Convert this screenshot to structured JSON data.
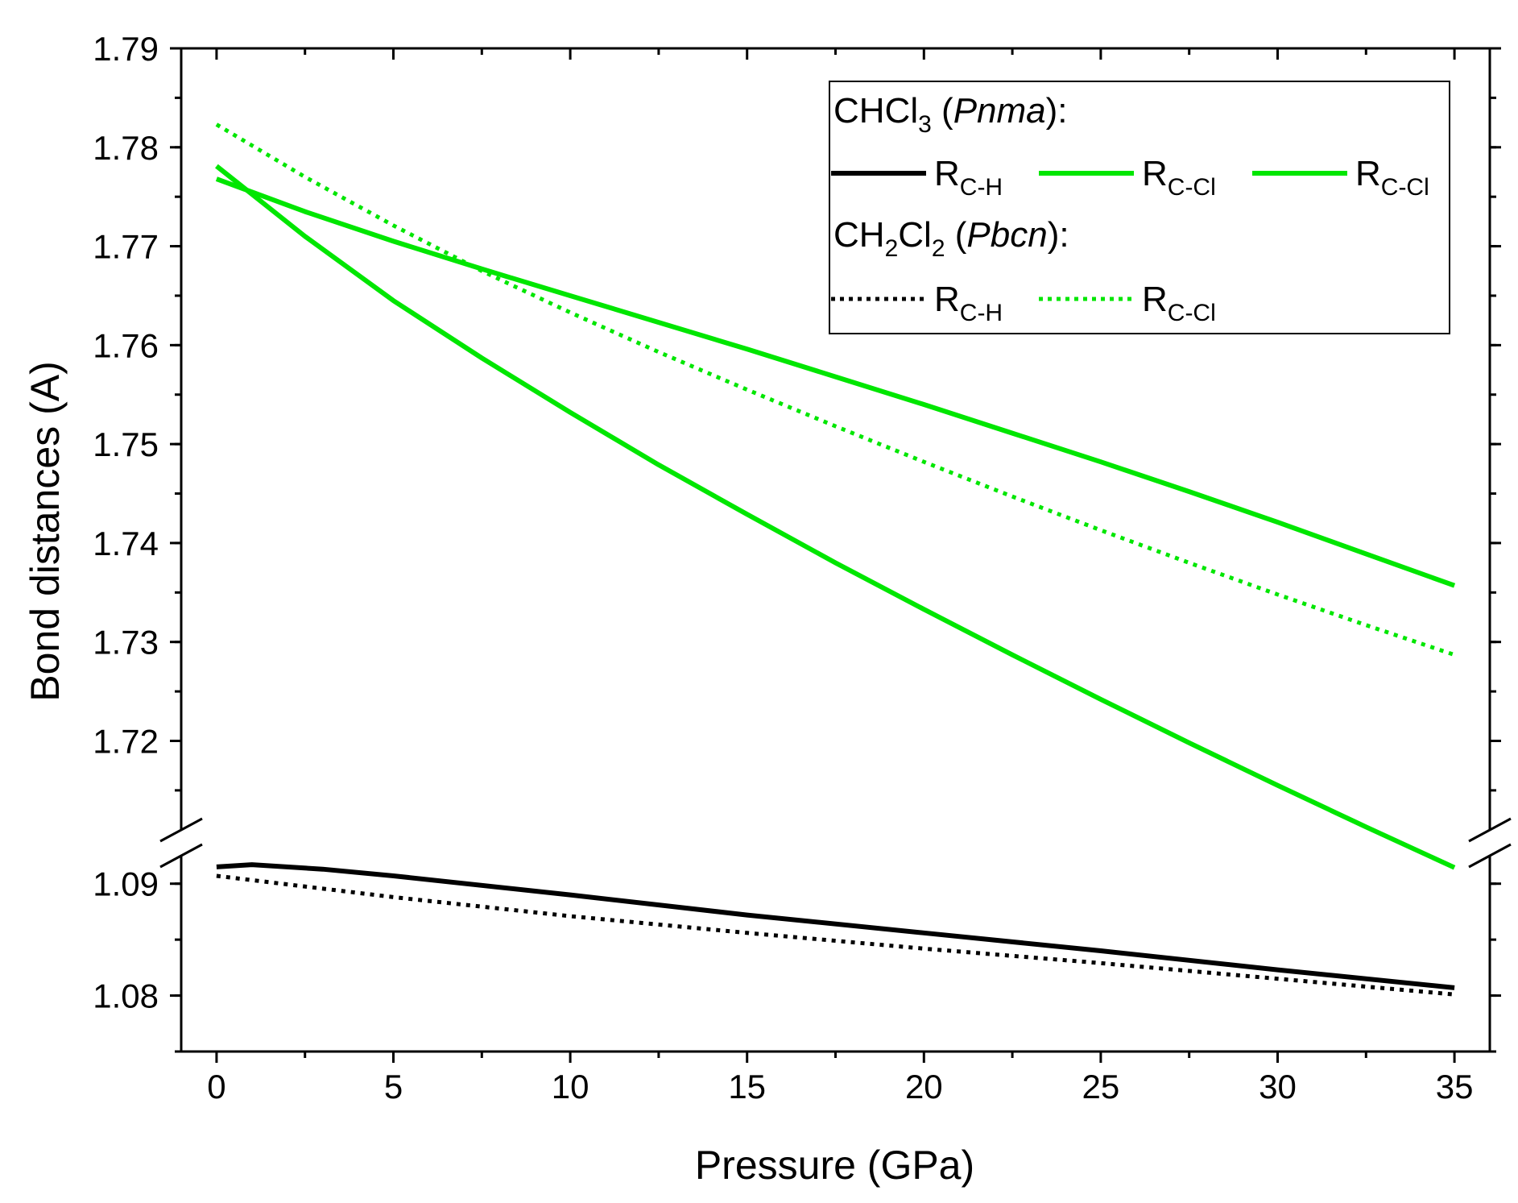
{
  "chart_data": {
    "type": "line",
    "xlabel": "Pressure (GPa)",
    "ylabel": "Bond distances (A)",
    "x_range": [
      -1,
      36
    ],
    "x_ticks": [
      0,
      5,
      10,
      15,
      20,
      25,
      30,
      35
    ],
    "y_axis_break": true,
    "y_upper_range": [
      1.711,
      1.79
    ],
    "y_upper_ticks": [
      "1.72",
      "1.73",
      "1.74",
      "1.75",
      "1.76",
      "1.77",
      "1.78",
      "1.79"
    ],
    "y_lower_range": [
      1.075,
      1.0925
    ],
    "y_lower_ticks": [
      "1.08",
      "1.09"
    ],
    "grid": false,
    "legend_position": "top-right",
    "legend": {
      "group1": {
        "formula_a": "CHCl",
        "formula_sub": "3",
        "open": " (",
        "space_group": "Pnma",
        "close": "):"
      },
      "group2": {
        "f1": "CH",
        "s1": "2",
        "f2": "Cl",
        "s2": "2",
        "open": " (",
        "space_group": "Pbcn",
        "close": "):"
      },
      "entries": [
        {
          "main": "R",
          "sub": "C-H",
          "series": 0
        },
        {
          "main": "R",
          "sub": "C-Cl",
          "series": 1
        },
        {
          "main": "R",
          "sub": "C-Cl",
          "series": 2
        },
        {
          "main": "R",
          "sub": "C-H",
          "series": 3
        },
        {
          "main": "R",
          "sub": "C-Cl",
          "series": 4
        }
      ]
    },
    "series": [
      {
        "name": "CHCl3 (Pnma) R C-H",
        "color": "#000000",
        "style": "solid",
        "axis": "lower",
        "x": [
          0,
          1,
          3,
          5,
          10,
          15,
          20,
          25,
          30,
          35
        ],
        "values": [
          1.0915,
          1.0917,
          1.0913,
          1.0907,
          1.089,
          1.0872,
          1.0856,
          1.084,
          1.0823,
          1.0807
        ]
      },
      {
        "name": "CHCl3 (Pnma) R C-Cl",
        "color": "#00e600",
        "style": "solid",
        "axis": "upper",
        "x": [
          0,
          2.5,
          5,
          7.5,
          10,
          12.5,
          15,
          17.5,
          20,
          22.5,
          25,
          27.5,
          30,
          32.5,
          35
        ],
        "values": [
          1.7768,
          1.7735,
          1.7705,
          1.7677,
          1.765,
          1.7623,
          1.7596,
          1.7568,
          1.754,
          1.7511,
          1.7482,
          1.7452,
          1.7421,
          1.7389,
          1.7357
        ]
      },
      {
        "name": "CHCl3 (Pnma) R C-Cl",
        "color": "#00e600",
        "style": "solid",
        "axis": "upper",
        "x": [
          0,
          2.5,
          5,
          7.5,
          10,
          12.5,
          15,
          17.5,
          20,
          22.5,
          25,
          27.5,
          30,
          32.5,
          35
        ],
        "values": [
          1.7781,
          1.771,
          1.7645,
          1.7587,
          1.7532,
          1.7479,
          1.7429,
          1.738,
          1.7333,
          1.7287,
          1.7242,
          1.7198,
          1.7155,
          1.7113,
          1.7072
        ]
      },
      {
        "name": "CH2Cl2 (Pbcn) R C-H",
        "color": "#000000",
        "style": "dotted",
        "axis": "lower",
        "x": [
          0,
          5,
          10,
          15,
          20,
          25,
          30,
          35
        ],
        "values": [
          1.0907,
          1.0888,
          1.0871,
          1.0856,
          1.0842,
          1.0829,
          1.0815,
          1.0801
        ]
      },
      {
        "name": "CH2Cl2 (Pbcn) R C-Cl",
        "color": "#00e600",
        "style": "dotted",
        "axis": "upper",
        "x": [
          0,
          2.5,
          5,
          7.5,
          10,
          12.5,
          15,
          17.5,
          20,
          22.5,
          25,
          27.5,
          30,
          32.5,
          35
        ],
        "values": [
          1.7823,
          1.777,
          1.7721,
          1.7675,
          1.7633,
          1.7593,
          1.7555,
          1.7518,
          1.7482,
          1.7447,
          1.7413,
          1.738,
          1.7348,
          1.7317,
          1.7287
        ]
      }
    ]
  }
}
